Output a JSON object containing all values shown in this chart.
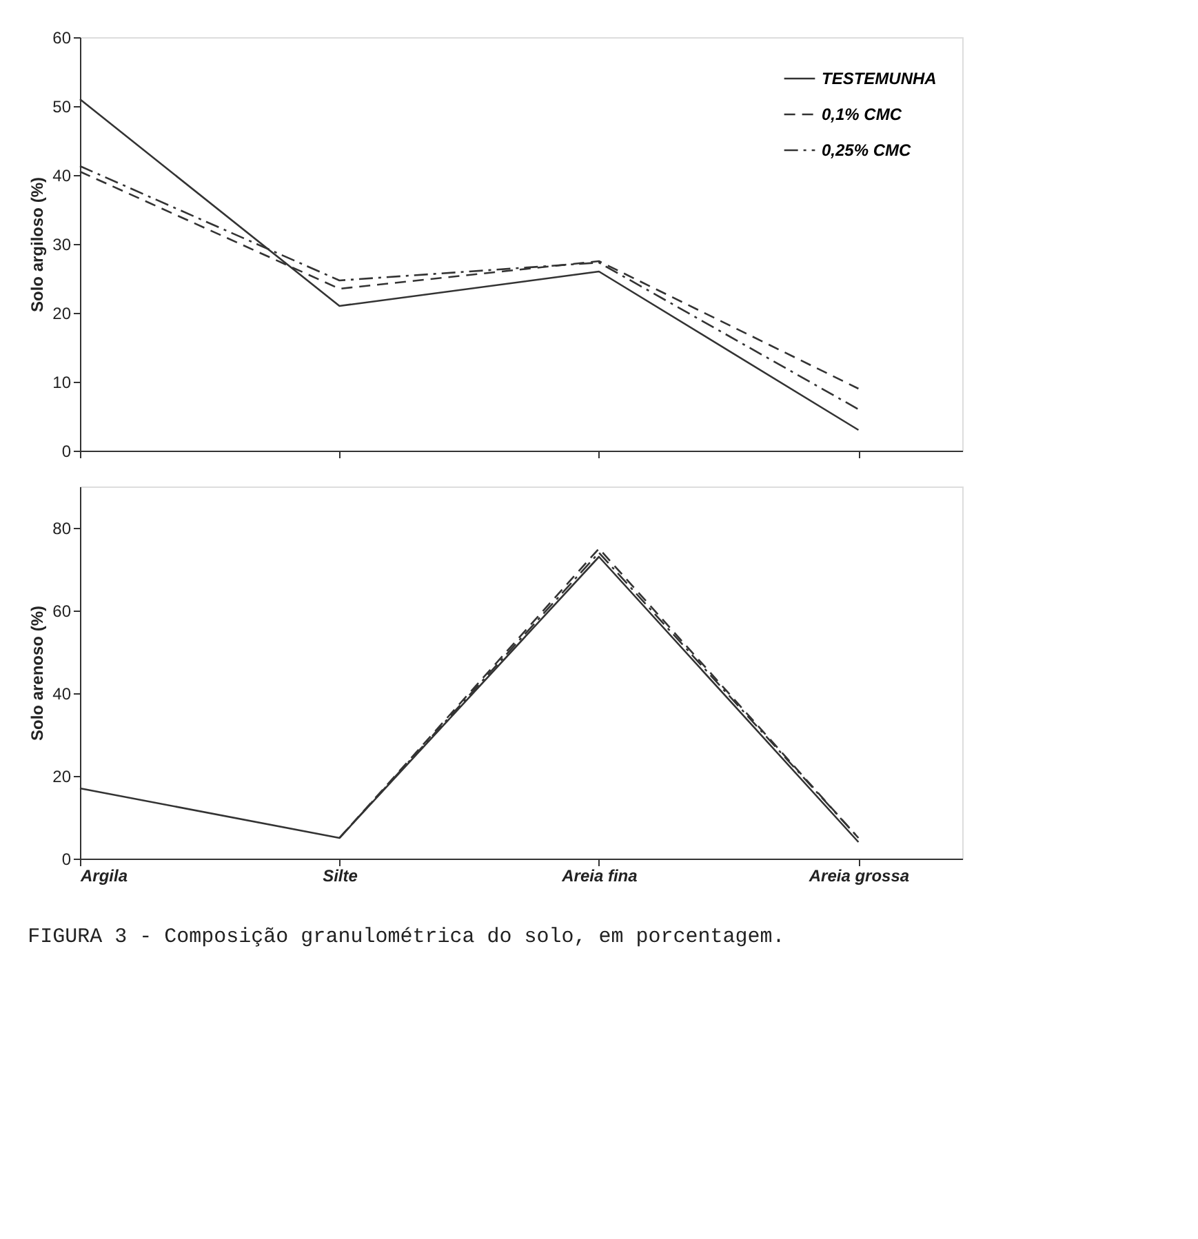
{
  "chart_data": [
    {
      "type": "line",
      "categories": [
        null,
        null,
        null,
        null
      ],
      "ylabel": "Solo argiloso (%)",
      "ylim": [
        0,
        60
      ],
      "yticks": [
        0,
        10,
        20,
        30,
        40,
        50,
        60
      ],
      "tick_labels": "y",
      "grid": false,
      "legend": "top right",
      "marker": "none",
      "series": [
        {
          "name": "TESTEMUNHA",
          "color": "#333333",
          "line_style": "solid",
          "values": [
            51,
            21,
            26,
            3
          ]
        },
        {
          "name": "0,1% CMC",
          "color": "#333333",
          "line_style": "dashed",
          "values": [
            40.5,
            23.5,
            27.5,
            9
          ]
        },
        {
          "name": "0,25% CMC",
          "color": "#333333",
          "line_style": "dashdot",
          "values": [
            41.3,
            24.7,
            27.3,
            6
          ]
        }
      ]
    },
    {
      "type": "line",
      "categories": [
        "Argila",
        "Silte",
        "Areia fina",
        "Areia grossa"
      ],
      "ylabel": "Solo arenoso (%)",
      "ylim": [
        0,
        90
      ],
      "yticks": [
        0,
        20,
        40,
        60,
        80
      ],
      "grid": false,
      "legend": false,
      "marker": "none",
      "annotations": [
        "FIGURA 3 - Composição granulométrica do solo, em porcentagem."
      ],
      "series": [
        {
          "color": "#333333",
          "line_style": "solid",
          "values": [
            17,
            5,
            73,
            4
          ]
        },
        {
          "color": "#333333",
          "line_style": "dashed",
          "values": [
            null,
            5,
            75,
            5
          ]
        },
        {
          "color": "#333333",
          "line_style": "dashdot",
          "values": [
            null,
            5,
            74,
            5
          ]
        }
      ]
    }
  ]
}
